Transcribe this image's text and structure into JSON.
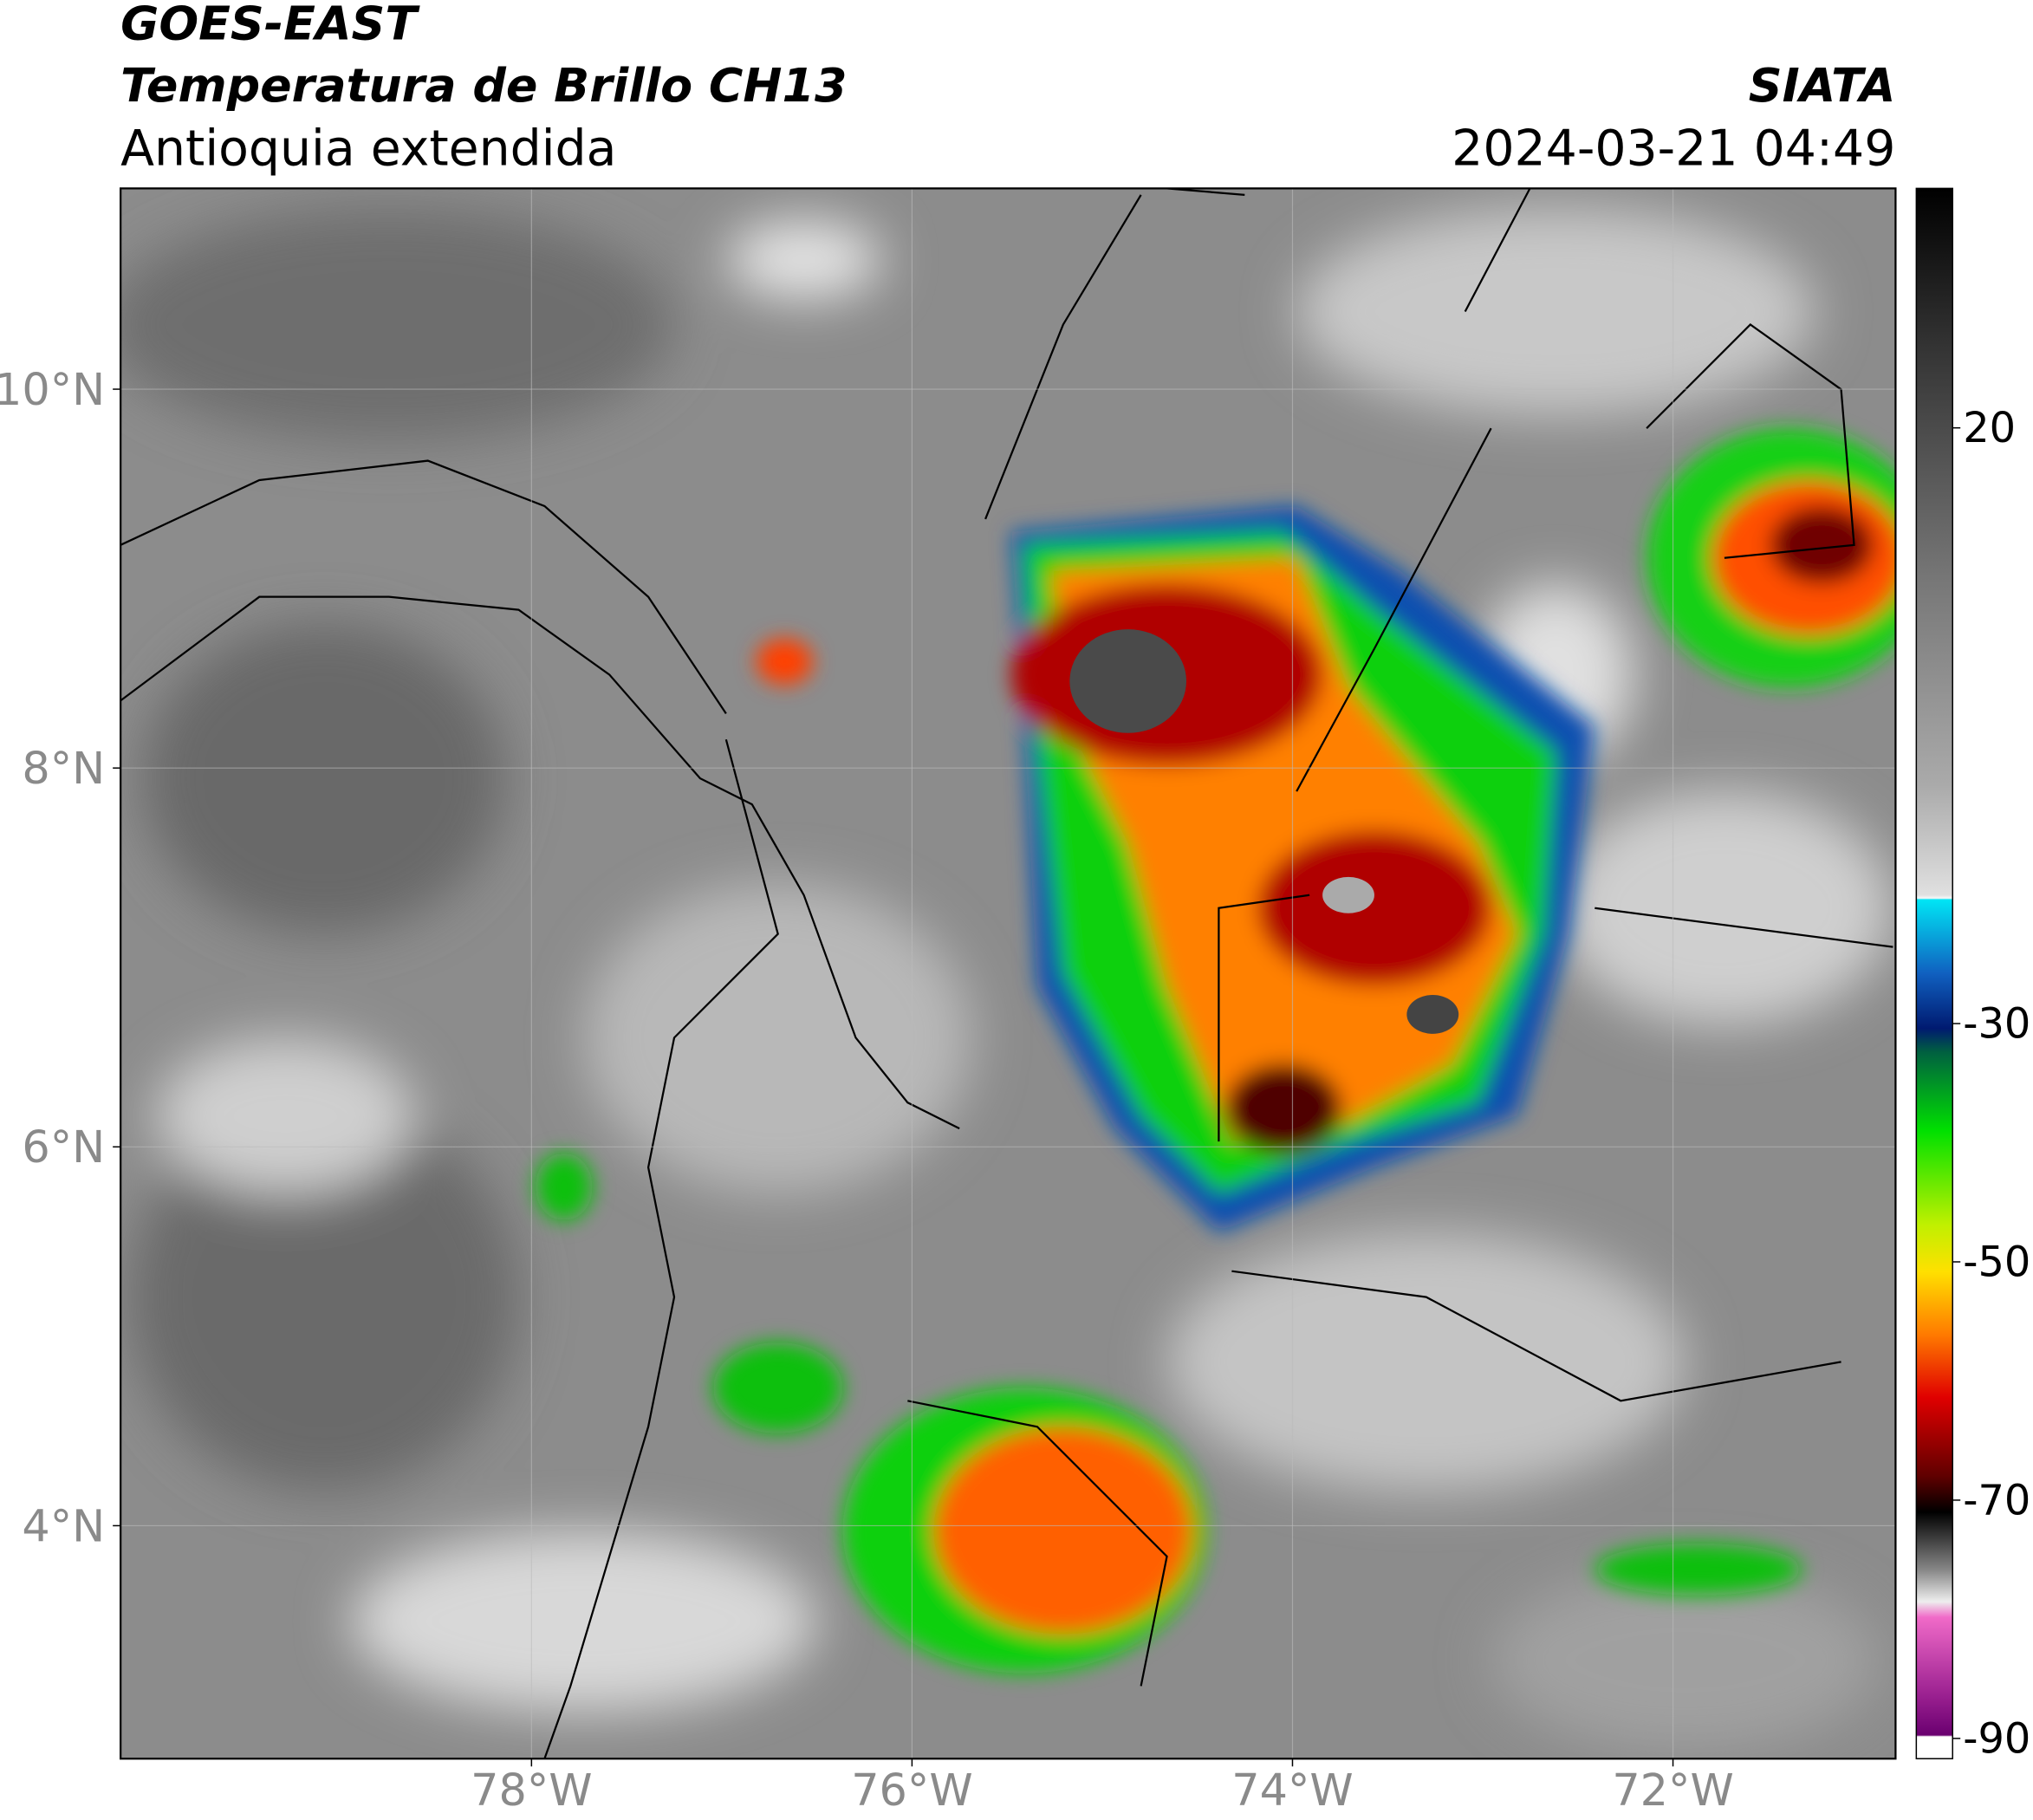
{
  "header": {
    "line1": "GOES-EAST",
    "line2": "Temperatura de Brillo CH13",
    "subtitle": "Antioquia extendida",
    "source": "SIATA",
    "datetime": "2024-03-21 04:49"
  },
  "map": {
    "xlim": [
      -80.16,
      -70.83
    ],
    "ylim": [
      2.77,
      11.06
    ],
    "xticks": [
      {
        "value": -78,
        "label": "78°W"
      },
      {
        "value": -76,
        "label": "76°W"
      },
      {
        "value": -74,
        "label": "74°W"
      },
      {
        "value": -72,
        "label": "72°W"
      }
    ],
    "yticks": [
      {
        "value": 4,
        "label": "4°N"
      },
      {
        "value": 6,
        "label": "6°N"
      },
      {
        "value": 8,
        "label": "8°N"
      },
      {
        "value": 10,
        "label": "10°N"
      }
    ],
    "grid": true
  },
  "colorbar": {
    "lim": [
      -91.7,
      40.1
    ],
    "ticks": [
      20,
      -30,
      -50,
      -70,
      -90
    ]
  }
}
